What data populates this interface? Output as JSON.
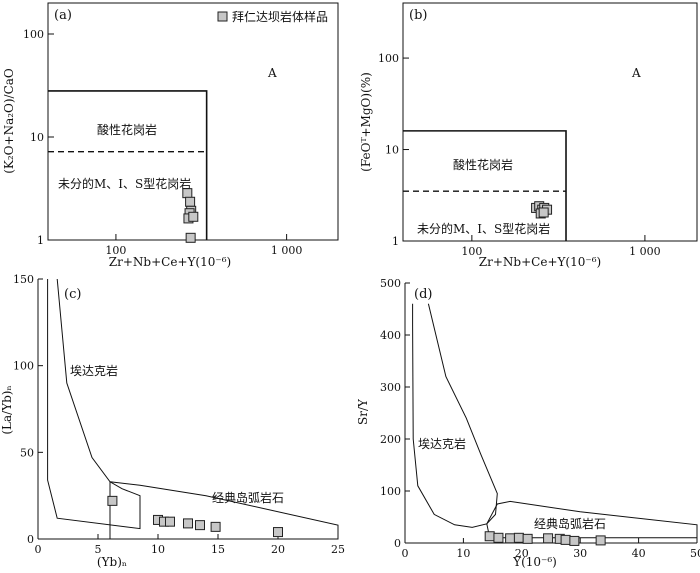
{
  "chart_data": [
    {
      "panel": "(a)",
      "type": "scatter",
      "xlabel": "Zr+Nb+Ce+Y(10⁻⁶)",
      "ylabel": "(K₂O+Na₂O)/CaO",
      "xscale": "log",
      "yscale": "log",
      "xlim": [
        40,
        2000
      ],
      "ylim": [
        1,
        200
      ],
      "xticks": [
        {
          "v": 100,
          "label": "100"
        },
        {
          "v": 1000,
          "label": "1 000"
        }
      ],
      "yticks": [
        {
          "v": 1,
          "label": "1"
        },
        {
          "v": 10,
          "label": "10"
        },
        {
          "v": 100,
          "label": "100"
        }
      ],
      "legend": {
        "label": "拜仁达坝岩体样品",
        "position": "top-right"
      },
      "fields": {
        "a_label": "A",
        "fg_label": "酸性花岗岩",
        "ots_label": "未分的M、I、S型花岗岩"
      },
      "boundary_x": 340,
      "boundary_y": 28,
      "dashed_y": 7.2,
      "series": [
        {
          "x": [
            262,
            272,
            276,
            270,
            266,
            284,
            274
          ],
          "y": [
            2.85,
            2.35,
            1.92,
            1.82,
            1.62,
            1.68,
            1.05
          ]
        }
      ]
    },
    {
      "panel": "(b)",
      "type": "scatter",
      "xlabel": "Zr+Nb+Ce+Y(10⁻⁶)",
      "ylabel": "(FeOᵀ+MgO)(%)",
      "xscale": "log",
      "yscale": "log",
      "xlim": [
        40,
        2000
      ],
      "ylim": [
        1,
        400
      ],
      "xticks": [
        {
          "v": 100,
          "label": "100"
        },
        {
          "v": 1000,
          "label": "1 000"
        }
      ],
      "yticks": [
        {
          "v": 1,
          "label": "1"
        },
        {
          "v": 10,
          "label": "10"
        },
        {
          "v": 100,
          "label": "100"
        }
      ],
      "fields": {
        "a_label": "A",
        "fg_label": "酸性花岗岩",
        "ots_label": "未分的M、I、S型花岗岩"
      },
      "boundary_x": 350,
      "boundary_y": 16,
      "dashed_y": 3.5,
      "series": [
        {
          "x": [
            235,
            245,
            255,
            262,
            272,
            250,
            260
          ],
          "y": [
            2.3,
            2.4,
            2.2,
            2.3,
            2.2,
            2.0,
            2.05
          ]
        }
      ]
    },
    {
      "panel": "(c)",
      "type": "scatter",
      "xlabel": "(Yb)ₙ",
      "ylabel": "(La/Yb)ₙ",
      "xlim": [
        0,
        25
      ],
      "ylim": [
        0,
        150
      ],
      "xticks": [
        0,
        5,
        10,
        15,
        20,
        25
      ],
      "yticks": [
        0,
        50,
        100,
        150
      ],
      "fields": {
        "adakite_label": "埃达克岩",
        "arc_label": "经典岛弧岩石"
      },
      "series": [
        {
          "x": [
            6.2,
            10.0,
            10.5,
            11.0,
            12.5,
            13.5,
            14.8,
            20.0
          ],
          "y": [
            22,
            11,
            10,
            10,
            9,
            8,
            7,
            4
          ]
        }
      ]
    },
    {
      "panel": "(d)",
      "type": "scatter",
      "xlabel": "Y(10⁻⁶)",
      "ylabel": "Sr/Y",
      "xlim": [
        0,
        50
      ],
      "ylim": [
        0,
        500
      ],
      "xticks": [
        0,
        10,
        20,
        30,
        40,
        50
      ],
      "yticks": [
        0,
        100,
        200,
        300,
        400,
        500
      ],
      "fields": {
        "adakite_label": "埃达克岩",
        "arc_label": "经典岛弧岩石"
      },
      "series": [
        {
          "x": [
            14.5,
            16.0,
            18.0,
            19.5,
            21.0,
            24.5,
            26.5,
            27.5,
            29.0,
            33.5
          ],
          "y": [
            13,
            10,
            9,
            10,
            8,
            9,
            8,
            6,
            4,
            5
          ]
        }
      ]
    }
  ]
}
